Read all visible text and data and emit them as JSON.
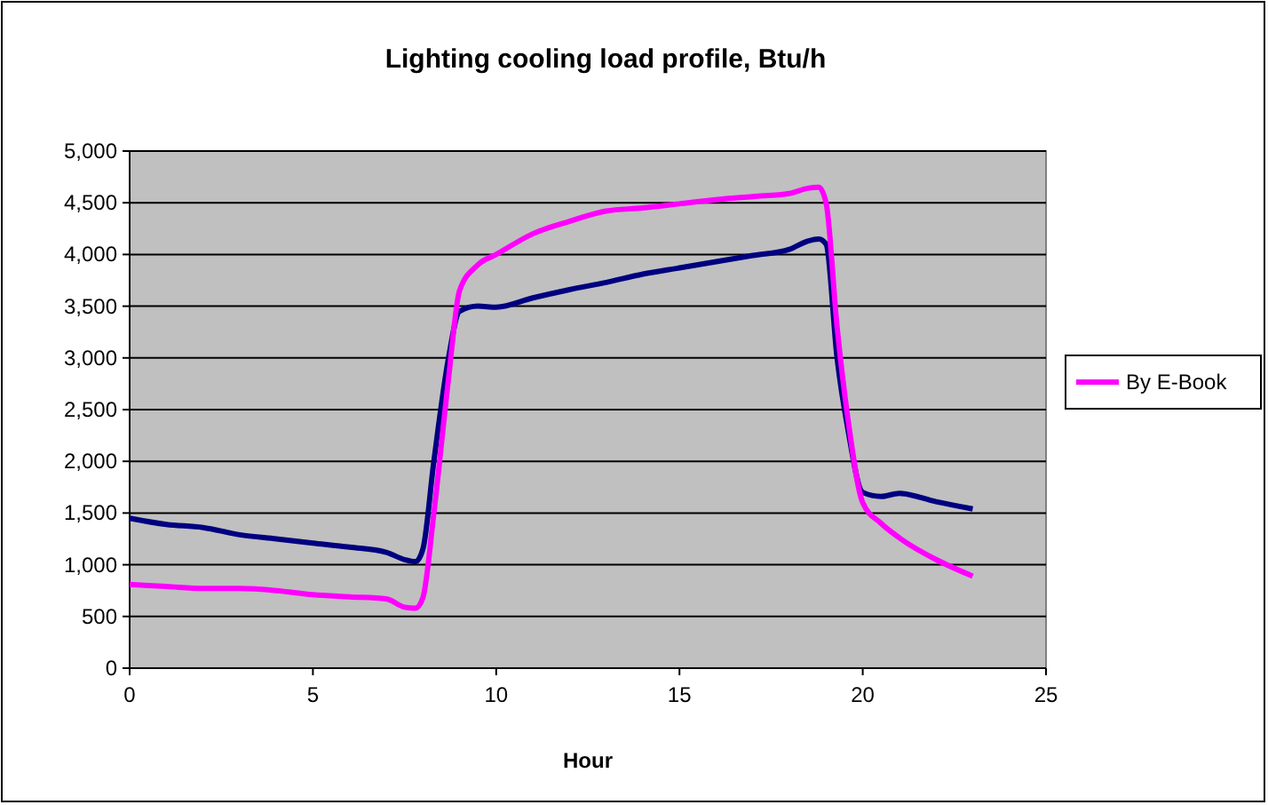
{
  "chart_data": {
    "type": "line",
    "title": "Lighting cooling load profile, Btu/h",
    "xlabel": "Hour",
    "xlim": [
      0,
      25
    ],
    "xticks": [
      0,
      5,
      10,
      15,
      20,
      25
    ],
    "ylim": [
      0,
      5000
    ],
    "yticks": [
      {
        "value": 0,
        "label": "0"
      },
      {
        "value": 500,
        "label": "500"
      },
      {
        "value": 1000,
        "label": "1,000"
      },
      {
        "value": 1500,
        "label": "1,500"
      },
      {
        "value": 2000,
        "label": "2,000"
      },
      {
        "value": 2500,
        "label": "2,500"
      },
      {
        "value": 3000,
        "label": "3,000"
      },
      {
        "value": 3500,
        "label": "3,500"
      },
      {
        "value": 4000,
        "label": "4,000"
      },
      {
        "value": 4500,
        "label": "4,500"
      },
      {
        "value": 5000,
        "label": "5,000"
      }
    ],
    "grid": "y",
    "legend": "right",
    "marker": "none",
    "line_style": "solid",
    "x": [
      0,
      1,
      2,
      3,
      4,
      5,
      6,
      7,
      7.5,
      7.8,
      8,
      8.3,
      8.7,
      9,
      9.5,
      10,
      11,
      12,
      13,
      14,
      15,
      16,
      17,
      18,
      18.5,
      18.8,
      19,
      19.3,
      19.6,
      20,
      20.5,
      21,
      22,
      23
    ],
    "series": [
      {
        "color": "#000080",
        "values": [
          1450,
          1390,
          1360,
          1290,
          1250,
          1210,
          1170,
          1120,
          1050,
          1030,
          1150,
          2000,
          3000,
          3450,
          3500,
          3490,
          3580,
          3660,
          3730,
          3810,
          3870,
          3930,
          3990,
          4050,
          4130,
          4150,
          4100,
          3000,
          2300,
          1700,
          1660,
          1690,
          1610,
          1540
        ]
      },
      {
        "name": "By E-Book",
        "color": "#ff00ff",
        "values": [
          810,
          790,
          770,
          770,
          750,
          710,
          690,
          670,
          590,
          580,
          680,
          1500,
          2800,
          3650,
          3900,
          4000,
          4200,
          4320,
          4420,
          4450,
          4490,
          4530,
          4560,
          4590,
          4640,
          4650,
          4500,
          3300,
          2400,
          1600,
          1400,
          1260,
          1050,
          890
        ]
      }
    ]
  }
}
